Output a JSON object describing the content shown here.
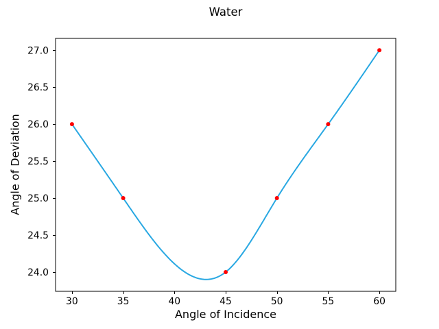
{
  "chart_data": {
    "type": "line",
    "title": "Water",
    "xlabel": "Angle of Incidence",
    "ylabel": "Angle of Deviation",
    "x": [
      30,
      35,
      45,
      50,
      55,
      60
    ],
    "y": [
      26,
      25,
      24,
      25,
      26,
      27
    ],
    "curve_style": "smooth-cubic-spline",
    "marker_style": "filled-circle",
    "xlim": [
      28.4,
      61.6
    ],
    "ylim": [
      23.74,
      27.16
    ],
    "xticks": [
      30,
      35,
      40,
      45,
      50,
      55,
      60
    ],
    "xtick_labels": [
      "30",
      "35",
      "40",
      "45",
      "50",
      "55",
      "60"
    ],
    "yticks": [
      24.0,
      24.5,
      25.0,
      25.5,
      26.0,
      26.5,
      27.0
    ],
    "ytick_labels": [
      "24.0",
      "24.5",
      "25.0",
      "25.5",
      "26.0",
      "26.5",
      "27.0"
    ],
    "grid": false,
    "legend": null,
    "colors": {
      "line": "#29a8e2",
      "marker": "#ff0000",
      "axes": "#000000",
      "text": "#000000",
      "background": "#ffffff"
    }
  }
}
